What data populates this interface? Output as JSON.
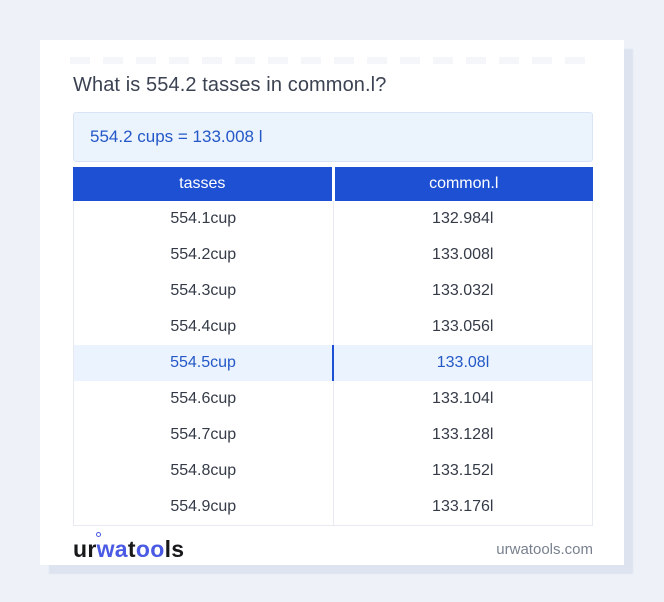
{
  "question": "What is 554.2 tasses in common.l?",
  "result": "554.2 cups = 133.008 l",
  "table": {
    "headers": [
      "tasses",
      "common.l"
    ],
    "rows": [
      {
        "from": "554.1cup",
        "to": "132.984l",
        "highlight": false
      },
      {
        "from": "554.2cup",
        "to": "133.008l",
        "highlight": false
      },
      {
        "from": "554.3cup",
        "to": "133.032l",
        "highlight": false
      },
      {
        "from": "554.4cup",
        "to": "133.056l",
        "highlight": false
      },
      {
        "from": "554.5cup",
        "to": "133.08l",
        "highlight": true
      },
      {
        "from": "554.6cup",
        "to": "133.104l",
        "highlight": false
      },
      {
        "from": "554.7cup",
        "to": "133.128l",
        "highlight": false
      },
      {
        "from": "554.8cup",
        "to": "133.152l",
        "highlight": false
      },
      {
        "from": "554.9cup",
        "to": "133.176l",
        "highlight": false
      }
    ]
  },
  "footer": {
    "logo_parts": {
      "black1": "ur",
      "blue1": "wa",
      "black2": "t",
      "blue2": "oo",
      "black3": "ls"
    },
    "domain": "urwatools.com"
  },
  "colors": {
    "page_background": "#eef1f8",
    "header_blue": "#1d50d3",
    "link_blue": "#2458c7",
    "highlight_background": "#eaf3fe",
    "result_background": "#ebf3fd",
    "logo_blue": "#4a5ae4",
    "text_dark": "#3b4252",
    "footer_gray": "#79818f"
  }
}
